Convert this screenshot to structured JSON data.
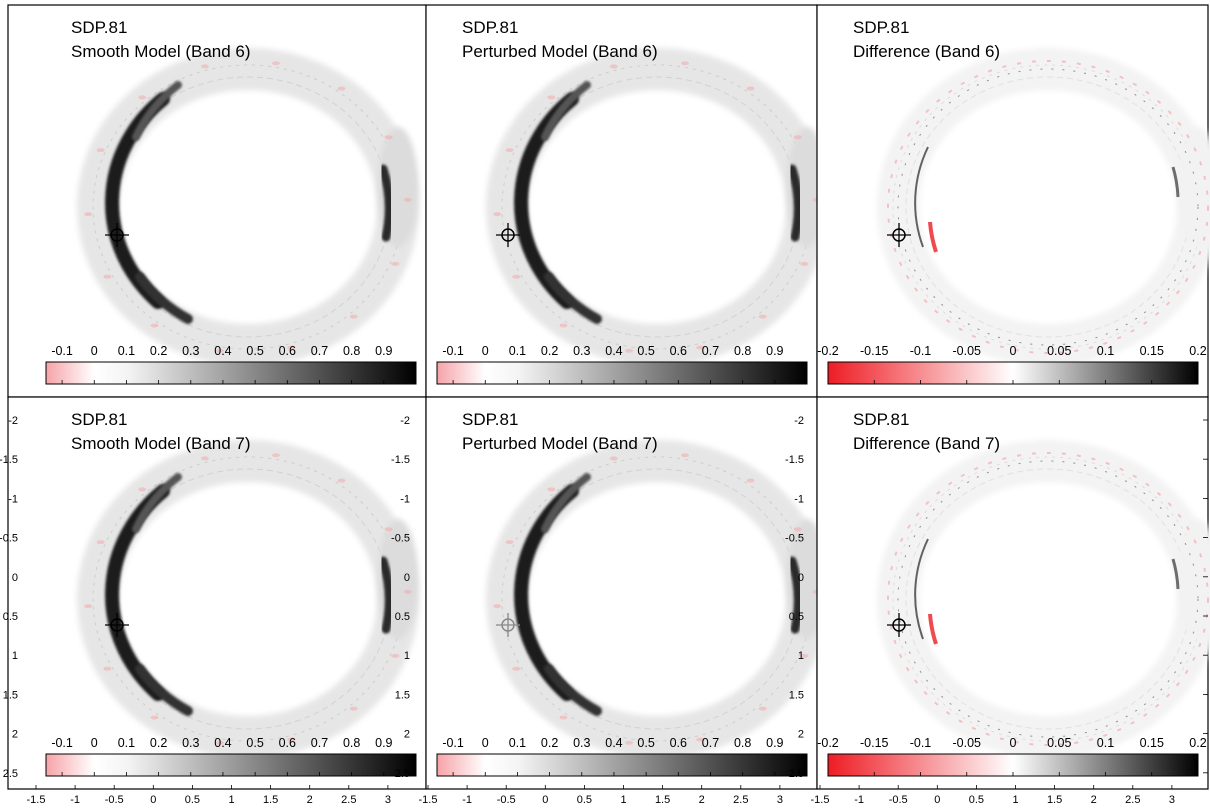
{
  "figure": {
    "panels": [
      {
        "object": "SDP.81",
        "subtitle": "Smooth Model (Band 6)",
        "colorbar": {
          "ticks": [
            "-0.1",
            "0",
            "0.1",
            "0.2",
            "0.3",
            "0.4",
            "0.5",
            "0.6",
            "0.7",
            "0.8",
            "0.9"
          ],
          "range": [
            -0.15,
            1.0
          ],
          "colormap": "white-to-black, pink negatives"
        }
      },
      {
        "object": "SDP.81",
        "subtitle": "Perturbed Model (Band 6)",
        "colorbar": {
          "ticks": [
            "-0.1",
            "0",
            "0.1",
            "0.2",
            "0.3",
            "0.4",
            "0.5",
            "0.6",
            "0.7",
            "0.8",
            "0.9"
          ],
          "range": [
            -0.15,
            1.0
          ],
          "colormap": "white-to-black, pink negatives"
        }
      },
      {
        "object": "SDP.81",
        "subtitle": "Difference (Band 6)",
        "colorbar": {
          "ticks": [
            "-0.2",
            "-0.15",
            "-0.1",
            "-0.05",
            "0",
            "0.05",
            "0.1",
            "0.15",
            "0.2"
          ],
          "range": [
            -0.2,
            0.2
          ],
          "colormap": "red-white-black diverging"
        }
      },
      {
        "object": "SDP.81",
        "subtitle": "Smooth Model (Band 7)",
        "colorbar": {
          "ticks": [
            "-0.1",
            "0",
            "0.1",
            "0.2",
            "0.3",
            "0.4",
            "0.5",
            "0.6",
            "0.7",
            "0.8",
            "0.9"
          ],
          "range": [
            -0.15,
            1.0
          ],
          "colormap": "white-to-black, pink negatives"
        }
      },
      {
        "object": "SDP.81",
        "subtitle": "Perturbed Model (Band 7)",
        "colorbar": {
          "ticks": [
            "-0.1",
            "0",
            "0.1",
            "0.2",
            "0.3",
            "0.4",
            "0.5",
            "0.6",
            "0.7",
            "0.8",
            "0.9"
          ],
          "range": [
            -0.15,
            1.0
          ],
          "colormap": "white-to-black, pink negatives"
        }
      },
      {
        "object": "SDP.81",
        "subtitle": "Difference (Band 7)",
        "colorbar": {
          "ticks": [
            "-0.2",
            "-0.15",
            "-0.1",
            "-0.05",
            "0",
            "0.05",
            "0.1",
            "0.15",
            "0.2"
          ],
          "range": [
            -0.2,
            0.2
          ],
          "colormap": "red-white-black diverging"
        }
      }
    ],
    "y_axis_ticks": [
      "-2",
      "-1.5",
      "-1",
      "-0.5",
      "0",
      "0.5",
      "1",
      "1.5",
      "2",
      "2.5"
    ],
    "x_axis_ticks": [
      "-1.5",
      "-1",
      "-0.5",
      "0",
      "0.5",
      "1",
      "1.5",
      "2",
      "2.5",
      "3"
    ],
    "colors": {
      "ring_dark": "#1a1a1a",
      "ring_light": "#d0d0d0",
      "negative_pink": "#f4a9ad",
      "negative_red": "#ee1c24",
      "frame": "#000000"
    }
  }
}
